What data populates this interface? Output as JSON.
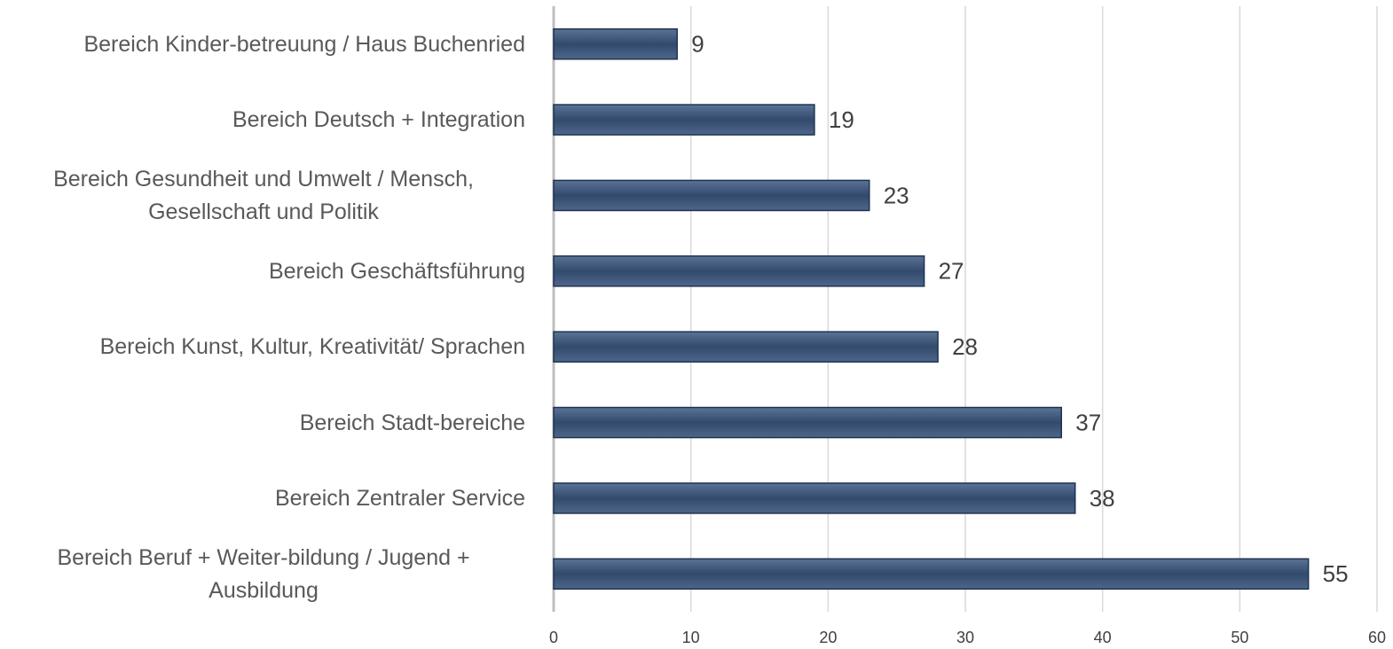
{
  "chart_data": {
    "type": "bar",
    "orientation": "horizontal",
    "categories": [
      "Bereich Kinder-betreuung / Haus Buchenried",
      "Bereich Deutsch + Integration",
      "Bereich Gesundheit und Umwelt / Mensch, Gesellschaft und Politik",
      "Bereich Geschäftsführung",
      "Bereich Kunst, Kultur, Kreativität/ Sprachen",
      "Bereich Stadt-bereiche",
      "Bereich Zentraler Service",
      "Bereich Beruf + Weiter-bildung / Jugend + Ausbildung"
    ],
    "values": [
      9,
      19,
      23,
      27,
      28,
      37,
      38,
      55
    ],
    "color": "#3b5478",
    "xlim": [
      0,
      60
    ],
    "xticks": [
      0,
      10,
      20,
      30,
      40,
      50,
      60
    ],
    "grid": true
  }
}
